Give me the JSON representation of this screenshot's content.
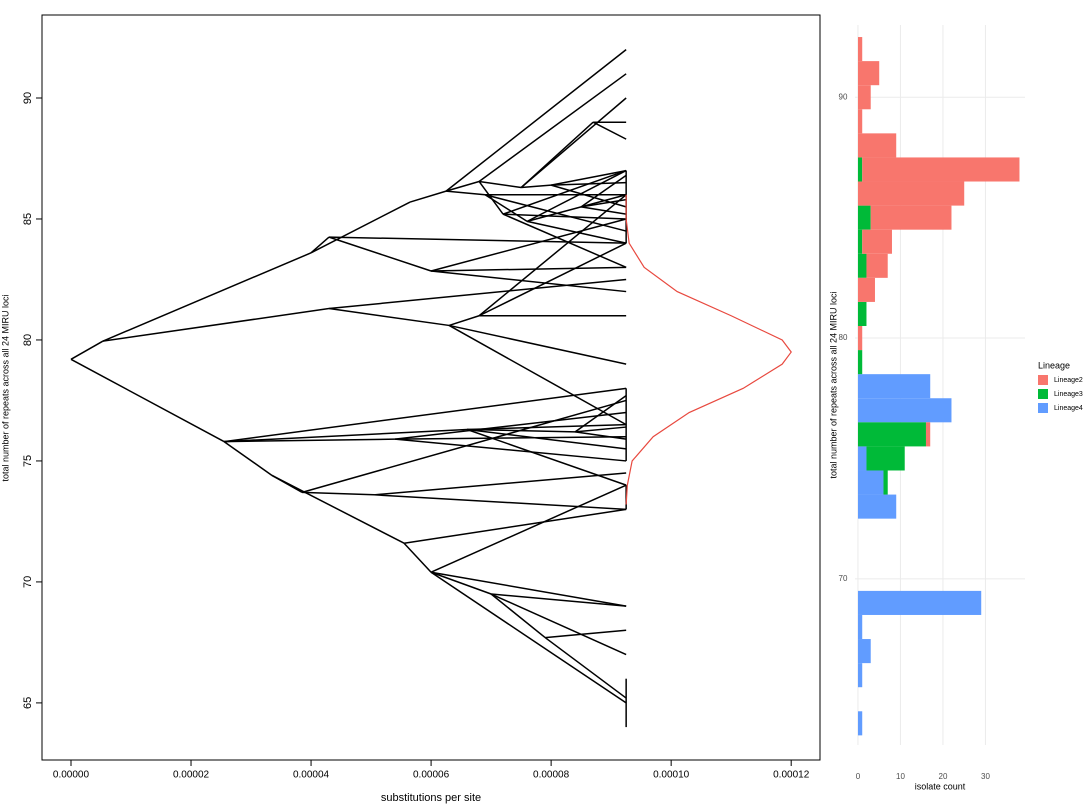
{
  "chart_data": [
    {
      "type": "phenogram",
      "xlabel": "substitutions per site",
      "ylabel": "total number of repeats across all 24 MIRU loci",
      "xlim": [
        -4.83e-06,
        0.0001248
      ],
      "ylim": [
        62.64,
        93.43
      ],
      "xticks": [
        {
          "value": 0,
          "label": "0.00000"
        },
        {
          "value": 2e-05,
          "label": "0.00002"
        },
        {
          "value": 4e-05,
          "label": "0.00004"
        },
        {
          "value": 6e-05,
          "label": "0.00006"
        },
        {
          "value": 8e-05,
          "label": "0.00008"
        },
        {
          "value": 0.0001,
          "label": "0.00010"
        },
        {
          "value": 0.00012,
          "label": "0.00012"
        }
      ],
      "yticks": [
        65,
        70,
        75,
        80,
        85,
        90
      ],
      "edge_color": "#000000",
      "edges": [
        [
          0,
          79.2,
          5.3e-06,
          79.95
        ],
        [
          0,
          79.2,
          2.55e-05,
          75.8
        ],
        [
          5.3e-06,
          79.95,
          4e-05,
          83.6
        ],
        [
          5.3e-06,
          79.95,
          4.3e-05,
          81.3
        ],
        [
          4e-05,
          83.6,
          5.65e-05,
          85.7
        ],
        [
          4e-05,
          83.6,
          4.3e-05,
          84.25
        ],
        [
          4.3e-05,
          84.25,
          6e-05,
          82.85
        ],
        [
          4.3e-05,
          84.25,
          9.25e-05,
          84
        ],
        [
          5.65e-05,
          85.7,
          6.25e-05,
          86.15
        ],
        [
          6.25e-05,
          86.15,
          9.25e-05,
          92
        ],
        [
          6.25e-05,
          86.15,
          6.8e-05,
          86.55
        ],
        [
          6.25e-05,
          86.15,
          6.9e-05,
          86
        ],
        [
          6.8e-05,
          86.55,
          7.5e-05,
          86.3
        ],
        [
          6.8e-05,
          86.55,
          9.25e-05,
          91
        ],
        [
          7.5e-05,
          86.3,
          9.25e-05,
          90
        ],
        [
          7.5e-05,
          86.3,
          8e-05,
          86.4
        ],
        [
          8e-05,
          86.4,
          9.25e-05,
          87
        ],
        [
          8e-05,
          86.4,
          9.25e-05,
          86.5
        ],
        [
          8e-05,
          86.4,
          9.25e-05,
          85.5
        ],
        [
          7.5e-05,
          86.3,
          8.7e-05,
          89
        ],
        [
          8.7e-05,
          89,
          9.25e-05,
          89
        ],
        [
          8.7e-05,
          89,
          9.25e-05,
          88.3
        ],
        [
          6.8e-05,
          86.55,
          7.2e-05,
          85.2
        ],
        [
          7.2e-05,
          85.2,
          9.25e-05,
          87
        ],
        [
          7.2e-05,
          85.2,
          9.25e-05,
          85
        ],
        [
          7.2e-05,
          85.2,
          9.25e-05,
          83
        ],
        [
          6.9e-05,
          86,
          9.25e-05,
          86
        ],
        [
          6.9e-05,
          86,
          9.25e-05,
          84.5
        ],
        [
          6.9e-05,
          86,
          7.6e-05,
          84.9
        ],
        [
          7.6e-05,
          84.9,
          9.25e-05,
          87
        ],
        [
          7.6e-05,
          84.9,
          9.25e-05,
          84
        ],
        [
          7.6e-05,
          84.9,
          8.5e-05,
          85.5
        ],
        [
          8.5e-05,
          85.5,
          9.25e-05,
          86
        ],
        [
          8.5e-05,
          85.5,
          9.25e-05,
          85.8
        ],
        [
          8.5e-05,
          85.5,
          9.25e-05,
          85.2
        ],
        [
          8.5e-05,
          85.5,
          9.25e-05,
          86.8
        ],
        [
          6e-05,
          82.85,
          9.25e-05,
          83
        ],
        [
          6e-05,
          82.85,
          9.25e-05,
          82
        ],
        [
          6e-05,
          82.85,
          9.25e-05,
          85
        ],
        [
          4.3e-05,
          81.3,
          6.3e-05,
          80.6
        ],
        [
          4.3e-05,
          81.3,
          9.25e-05,
          82.5
        ],
        [
          6.3e-05,
          80.6,
          6.8e-05,
          81
        ],
        [
          6.3e-05,
          80.6,
          9.25e-05,
          76.5
        ],
        [
          6.3e-05,
          80.6,
          9.25e-05,
          79
        ],
        [
          6.8e-05,
          81,
          9.25e-05,
          81
        ],
        [
          6.8e-05,
          81,
          9.25e-05,
          84
        ],
        [
          6.8e-05,
          81,
          9.25e-05,
          86
        ],
        [
          2.55e-05,
          75.8,
          3.35e-05,
          74.4
        ],
        [
          2.55e-05,
          75.8,
          5.4e-05,
          75.9
        ],
        [
          2.55e-05,
          75.8,
          9.25e-05,
          78
        ],
        [
          2.55e-05,
          75.8,
          6.6e-05,
          76.3
        ],
        [
          5.4e-05,
          75.9,
          9.25e-05,
          77
        ],
        [
          5.4e-05,
          75.9,
          9.25e-05,
          75
        ],
        [
          5.4e-05,
          75.9,
          9.25e-05,
          76
        ],
        [
          6.6e-05,
          76.3,
          9.25e-05,
          76.5
        ],
        [
          6.6e-05,
          76.3,
          9.25e-05,
          75.5
        ],
        [
          6.6e-05,
          76.3,
          9.25e-05,
          74
        ],
        [
          6.6e-05,
          76.3,
          8.4e-05,
          76.2
        ],
        [
          8.4e-05,
          76.2,
          9.25e-05,
          76.4
        ],
        [
          8.4e-05,
          76.2,
          9.25e-05,
          75.9
        ],
        [
          8.4e-05,
          76.2,
          9.25e-05,
          77.7
        ],
        [
          3.35e-05,
          74.4,
          3.85e-05,
          73.7
        ],
        [
          3.35e-05,
          74.4,
          5.55e-05,
          71.6
        ],
        [
          3.85e-05,
          73.7,
          5.05e-05,
          73.6
        ],
        [
          3.85e-05,
          73.7,
          9.25e-05,
          77.5
        ],
        [
          5.05e-05,
          73.6,
          9.25e-05,
          73
        ],
        [
          5.05e-05,
          73.6,
          9.25e-05,
          74.5
        ],
        [
          5.55e-05,
          71.6,
          6e-05,
          70.4
        ],
        [
          5.55e-05,
          71.6,
          9.25e-05,
          73
        ],
        [
          6e-05,
          70.4,
          9.25e-05,
          69
        ],
        [
          6e-05,
          70.4,
          7e-05,
          69.5
        ],
        [
          6e-05,
          70.4,
          9.25e-05,
          74
        ],
        [
          6e-05,
          70.4,
          9.25e-05,
          65
        ],
        [
          7e-05,
          69.5,
          9.25e-05,
          67
        ],
        [
          7e-05,
          69.5,
          9.25e-05,
          69
        ],
        [
          7e-05,
          69.5,
          7.9e-05,
          67.7
        ],
        [
          7.9e-05,
          67.7,
          9.25e-05,
          68
        ],
        [
          7.9e-05,
          67.7,
          9.25e-05,
          65.2
        ],
        [
          9.25e-05,
          64,
          9.25e-05,
          66
        ],
        [
          9.25e-05,
          73,
          9.25e-05,
          74
        ],
        [
          9.25e-05,
          84,
          9.25e-05,
          87
        ],
        [
          9.25e-05,
          75,
          9.25e-05,
          78
        ]
      ],
      "density": {
        "color": "#e8493f",
        "x": [
          9.25e-05,
          9.27e-05,
          9.35e-05,
          9.7e-05,
          0.000103,
          0.000112,
          0.0001185,
          0.00012,
          0.0001185,
          0.00011,
          0.000101,
          9.55e-05,
          9.3e-05,
          9.25e-05,
          9.25e-05
        ],
        "y": [
          73.2,
          74,
          75,
          76,
          77,
          78,
          79,
          79.5,
          80,
          81,
          82,
          83,
          84,
          85,
          86
        ]
      }
    },
    {
      "type": "histogram",
      "xlabel": "isolate count",
      "ylabel": "total number of repeats across all 24 MIRU loci",
      "legend_title": "Lineage",
      "xlim": [
        -0.7,
        39.3
      ],
      "ylim": [
        63.1,
        93
      ],
      "xticks": [
        0,
        10,
        20,
        30
      ],
      "yticks": [
        70,
        80,
        90
      ],
      "grid": true,
      "bins": [
        63.5,
        64.5,
        65.5,
        66.5,
        67.5,
        68.5,
        69.5,
        70.5,
        71.5,
        72.5,
        73.5,
        74.5,
        75.5,
        76.5,
        77.5,
        78.5,
        79.5,
        80.5,
        81.5,
        82.5,
        83.5,
        84.5,
        85.5,
        86.5,
        87.5,
        88.5,
        89.5,
        90.5,
        91.5,
        92.5
      ],
      "series": [
        {
          "name": "Lineage2",
          "color": "#F8766D",
          "values": [
            0,
            0,
            0,
            0,
            0,
            0,
            0,
            0,
            0,
            0,
            0,
            0,
            1,
            0,
            0,
            0,
            1,
            0,
            4,
            5,
            7,
            19,
            25,
            37,
            9,
            1,
            3,
            5,
            1
          ]
        },
        {
          "name": "Lineage3",
          "color": "#00BA38",
          "values": [
            0,
            0,
            0,
            0,
            0,
            0,
            0,
            0,
            0,
            0,
            1,
            9,
            16,
            0,
            0,
            1,
            0,
            2,
            0,
            2,
            1,
            3,
            0,
            1,
            0,
            0,
            0,
            0,
            0
          ]
        },
        {
          "name": "Lineage4",
          "color": "#619CFF",
          "values": [
            1,
            0,
            1,
            3,
            1,
            29,
            0,
            0,
            0,
            9,
            6,
            2,
            0,
            22,
            17,
            0,
            0,
            0,
            0,
            0,
            0,
            0,
            0,
            0,
            0,
            0,
            0,
            0,
            0
          ]
        }
      ]
    }
  ]
}
